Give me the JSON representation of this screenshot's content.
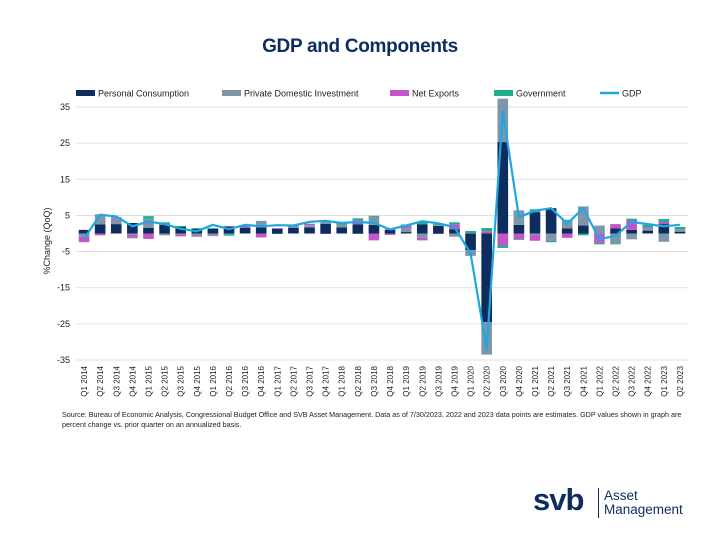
{
  "chart_data": {
    "type": "bar",
    "title": "GDP and Components",
    "ylabel": "%Change (QoQ)",
    "xlabel": "",
    "ylim": [
      -35,
      35
    ],
    "yticks": [
      35,
      25,
      15,
      5,
      -5,
      -15,
      -25,
      -35
    ],
    "categories": [
      "Q1 2014",
      "Q2 2014",
      "Q3 2014",
      "Q4 2014",
      "Q1 2015",
      "Q2 2015",
      "Q3 2015",
      "Q4 2015",
      "Q1 2016",
      "Q2 2016",
      "Q3 2016",
      "Q4 2016",
      "Q1 2017",
      "Q2 2017",
      "Q3 2017",
      "Q4 2017",
      "Q1 2018",
      "Q2 2018",
      "Q3 2018",
      "Q4 2018",
      "Q1 2019",
      "Q2 2019",
      "Q3 2019",
      "Q4 2019",
      "Q1 2020",
      "Q2 2020",
      "Q3 2020",
      "Q4 2020",
      "Q1 2021",
      "Q2 2021",
      "Q3 2021",
      "Q4 2021",
      "Q1 2022",
      "Q2 2022",
      "Q3 2022",
      "Q4 2022",
      "Q1 2023",
      "Q2 2023"
    ],
    "series": [
      {
        "name": "Personal Consumption",
        "type": "bar",
        "color": "#0d2d5e",
        "values": [
          1.0,
          2.5,
          2.6,
          2.9,
          1.6,
          2.4,
          1.8,
          1.3,
          1.3,
          1.9,
          1.6,
          1.7,
          1.3,
          1.6,
          1.7,
          2.7,
          1.7,
          2.5,
          2.4,
          1.0,
          0.4,
          2.5,
          2.1,
          1.2,
          -4.6,
          -24.5,
          25.3,
          2.4,
          5.9,
          7.0,
          1.4,
          2.2,
          0.0,
          1.4,
          1.0,
          0.8,
          2.6,
          0.5
        ]
      },
      {
        "name": "Private Domestic Investment",
        "type": "bar",
        "color": "#7f96aa",
        "values": [
          -0.8,
          2.5,
          1.2,
          -0.2,
          2.5,
          -0.5,
          -0.2,
          -0.7,
          -0.6,
          -0.2,
          0.0,
          1.7,
          0.0,
          0.5,
          0.6,
          0.5,
          0.8,
          -0.1,
          2.2,
          0.3,
          1.0,
          -1.2,
          0.2,
          -0.9,
          -1.6,
          -9.0,
          12.0,
          4.0,
          -0.4,
          -1.8,
          2.2,
          5.3,
          2.2,
          -2.7,
          -1.6,
          0.6,
          -2.3,
          0.7
        ]
      },
      {
        "name": "Net Exports",
        "type": "bar",
        "color": "#c455c8",
        "values": [
          -1.6,
          -0.5,
          0.4,
          -1.0,
          -1.5,
          0.2,
          -0.6,
          -0.2,
          -0.1,
          0.2,
          0.4,
          -1.1,
          0.2,
          0.2,
          0.4,
          -0.1,
          0.0,
          1.2,
          -1.9,
          -0.4,
          0.6,
          -0.7,
          -0.1,
          1.4,
          0.1,
          0.6,
          -3.3,
          -1.6,
          -1.6,
          -0.2,
          -1.2,
          0.0,
          -2.6,
          1.2,
          2.6,
          0.3,
          0.6,
          0.0
        ]
      },
      {
        "name": "Government",
        "type": "bar",
        "color": "#1fae86",
        "values": [
          0.0,
          0.3,
          0.3,
          -0.1,
          0.7,
          0.5,
          0.3,
          0.2,
          0.2,
          -0.4,
          0.1,
          0.1,
          -0.1,
          0.0,
          0.0,
          0.4,
          0.4,
          0.5,
          0.3,
          0.0,
          0.5,
          0.8,
          0.3,
          0.5,
          0.6,
          0.9,
          -0.7,
          -0.2,
          0.8,
          -0.4,
          0.2,
          -0.5,
          -0.4,
          -0.3,
          0.5,
          0.7,
          0.8,
          0.6
        ]
      },
      {
        "name": "GDP",
        "type": "line",
        "color": "#1ea7e1",
        "values": [
          -1.4,
          5.2,
          4.7,
          2.0,
          3.3,
          2.6,
          1.3,
          0.6,
          2.4,
          1.2,
          2.4,
          2.0,
          2.3,
          2.2,
          3.2,
          3.5,
          2.9,
          3.2,
          2.9,
          1.1,
          2.2,
          3.4,
          2.8,
          1.8,
          -5.5,
          -32.0,
          33.8,
          4.5,
          6.3,
          7.0,
          2.7,
          7.0,
          -1.6,
          -0.6,
          3.2,
          2.6,
          2.0,
          2.4
        ]
      }
    ],
    "legend_position": "top"
  },
  "source_note": "Source: Bureau of Economic Analysis, Congressional Budget Office and SVB Asset Management. Data as of 7/30/2023. 2022 and 2023 data points are estimates. GDP values shown in graph are percent change vs. prior quarter on an annualized basis.",
  "logo": {
    "word": "svb",
    "line1": "Asset",
    "line2": "Management",
    "color": "#0d2d5e"
  }
}
